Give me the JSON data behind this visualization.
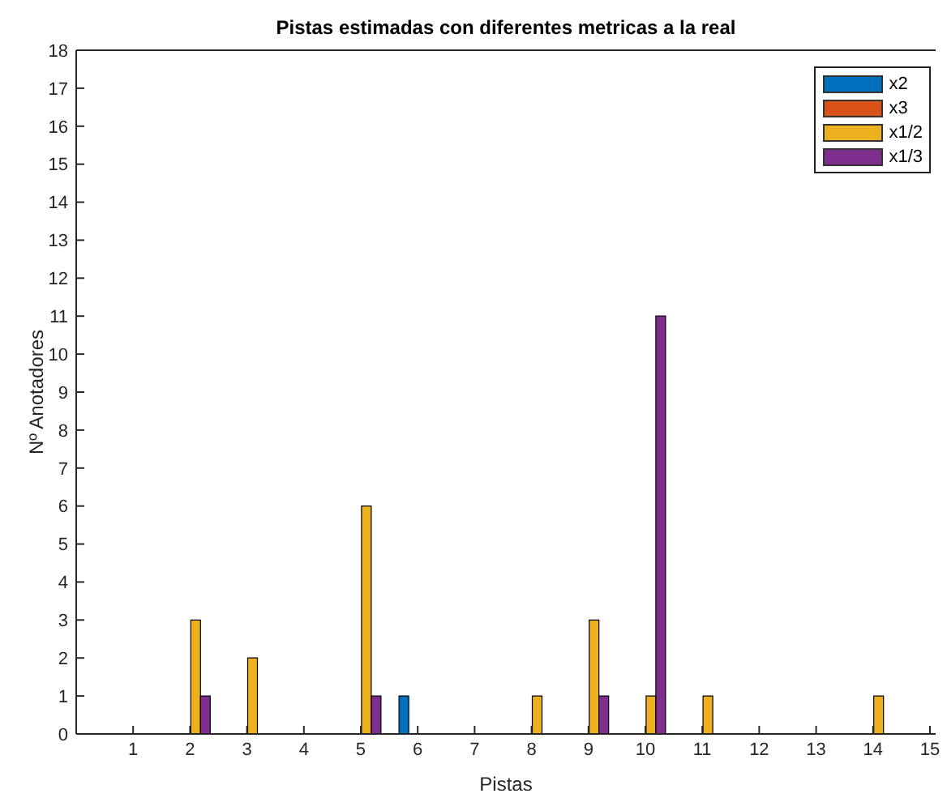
{
  "chart_data": {
    "type": "bar",
    "title": "Pistas estimadas con diferentes metricas a la real",
    "xlabel": "Pistas",
    "ylabel": "Nº Anotadores",
    "x": [
      1,
      2,
      3,
      4,
      5,
      6,
      7,
      8,
      9,
      10,
      11,
      12,
      13,
      14,
      15
    ],
    "series": [
      {
        "name": "x2",
        "color": "#0072bd",
        "values": [
          0,
          0,
          0,
          0,
          0,
          1,
          0,
          0,
          0,
          0,
          0,
          0,
          0,
          0,
          0
        ]
      },
      {
        "name": "x3",
        "color": "#d95319",
        "values": [
          0,
          0,
          0,
          0,
          0,
          0,
          0,
          0,
          0,
          0,
          0,
          0,
          0,
          0,
          0
        ]
      },
      {
        "name": "x1/2",
        "color": "#edb120",
        "values": [
          0,
          3,
          2,
          0,
          6,
          0,
          0,
          1,
          3,
          1,
          1,
          0,
          0,
          1,
          0
        ]
      },
      {
        "name": "x1/3",
        "color": "#7e2f8e",
        "values": [
          0,
          1,
          0,
          0,
          1,
          0,
          0,
          0,
          1,
          11,
          0,
          0,
          0,
          0,
          0
        ]
      }
    ],
    "xlim": [
      0,
      15.1
    ],
    "xticks": [
      1,
      2,
      3,
      4,
      5,
      6,
      7,
      8,
      9,
      10,
      11,
      12,
      13,
      14,
      15
    ],
    "ylim": [
      0,
      18
    ],
    "yticks": [
      0,
      1,
      2,
      3,
      4,
      5,
      6,
      7,
      8,
      9,
      10,
      11,
      12,
      13,
      14,
      15,
      16,
      17,
      18
    ],
    "legend": "top right",
    "grid": false
  }
}
